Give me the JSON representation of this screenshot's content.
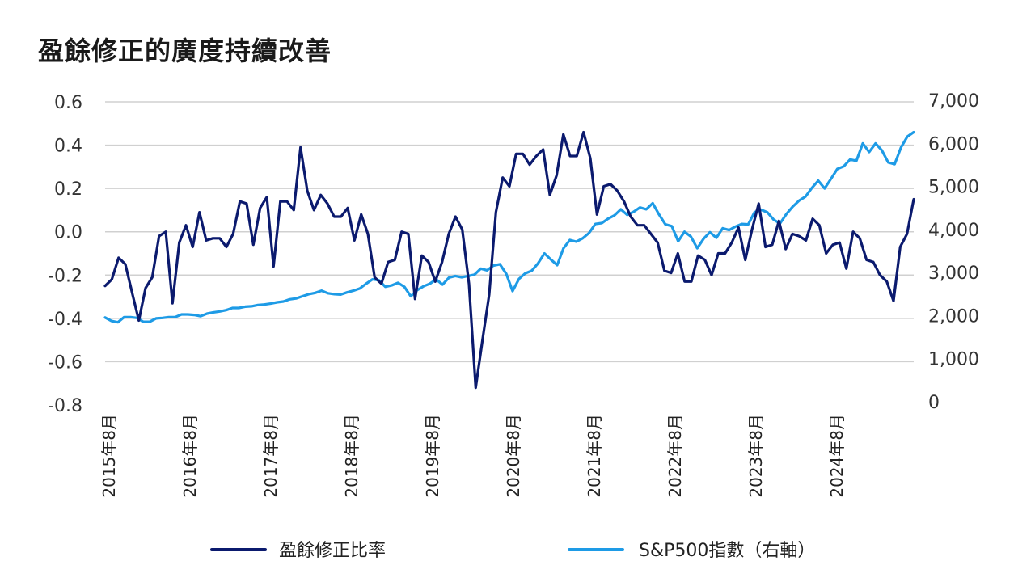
{
  "page_title": "盈餘修正的廣度持續改善",
  "colors": {
    "series1": "#0b1a6e",
    "series2": "#1e9be6",
    "grid": "#d0d0d0"
  },
  "chart_data": {
    "type": "line",
    "title": "盈餘修正的廣度持續改善",
    "y_left": {
      "ylim": [
        -0.8,
        0.6
      ],
      "ticks": [
        "0.6",
        "0.4",
        "0.2",
        "0.0",
        "-0.2",
        "-0.4",
        "-0.6",
        "-0.8"
      ]
    },
    "y_right": {
      "ylim": [
        0,
        7000
      ],
      "ticks": [
        "7,000",
        "6,000",
        "5,000",
        "4,000",
        "3,000",
        "2,000",
        "1,000",
        "0"
      ]
    },
    "x_ticks": [
      "2015年8月",
      "2016年8月",
      "2017年8月",
      "2018年8月",
      "2019年8月",
      "2020年8月",
      "2021年8月",
      "2022年8月",
      "2023年8月",
      "2024年8月"
    ],
    "grid": true,
    "legend_position": "bottom",
    "series": [
      {
        "name": "盈餘修正比率",
        "axis": "left",
        "values": [
          -0.25,
          -0.22,
          -0.12,
          -0.15,
          -0.28,
          -0.41,
          -0.26,
          -0.21,
          -0.02,
          0.0,
          -0.33,
          -0.05,
          0.03,
          -0.07,
          0.09,
          -0.04,
          -0.03,
          -0.03,
          -0.07,
          -0.01,
          0.14,
          0.13,
          -0.06,
          0.11,
          0.16,
          -0.16,
          0.14,
          0.14,
          0.1,
          0.39,
          0.19,
          0.1,
          0.17,
          0.13,
          0.07,
          0.07,
          0.11,
          -0.04,
          0.08,
          -0.01,
          -0.21,
          -0.24,
          -0.14,
          -0.13,
          0.0,
          -0.01,
          -0.31,
          -0.11,
          -0.14,
          -0.23,
          -0.14,
          -0.01,
          0.07,
          0.01,
          -0.24,
          -0.72,
          -0.5,
          -0.29,
          0.09,
          0.25,
          0.21,
          0.36,
          0.36,
          0.31,
          0.35,
          0.38,
          0.17,
          0.26,
          0.45,
          0.35,
          0.35,
          0.46,
          0.34,
          0.08,
          0.21,
          0.22,
          0.19,
          0.14,
          0.07,
          0.03,
          0.03,
          -0.01,
          -0.05,
          -0.18,
          -0.19,
          -0.1,
          -0.23,
          -0.23,
          -0.11,
          -0.13,
          -0.2,
          -0.1,
          -0.1,
          -0.05,
          0.02,
          -0.13,
          0.01,
          0.13,
          -0.07,
          -0.06,
          0.05,
          -0.08,
          -0.01,
          -0.02,
          -0.04,
          0.06,
          0.03,
          -0.1,
          -0.06,
          -0.05,
          -0.17,
          0.0,
          -0.03,
          -0.13,
          -0.14,
          -0.2,
          -0.23,
          -0.32,
          -0.07,
          -0.01,
          0.15
        ]
      },
      {
        "name": "S&P500指數（右軸）",
        "axis": "right",
        "values": [
          2020,
          1940,
          1910,
          2030,
          2030,
          2010,
          1920,
          1920,
          2000,
          2010,
          2030,
          2030,
          2090,
          2090,
          2080,
          2050,
          2110,
          2140,
          2160,
          2190,
          2240,
          2240,
          2270,
          2280,
          2310,
          2320,
          2340,
          2370,
          2390,
          2440,
          2460,
          2510,
          2560,
          2590,
          2640,
          2580,
          2560,
          2550,
          2600,
          2640,
          2690,
          2800,
          2900,
          2880,
          2730,
          2760,
          2820,
          2730,
          2510,
          2650,
          2740,
          2800,
          2900,
          2780,
          2940,
          2980,
          2950,
          2980,
          3010,
          3150,
          3110,
          3220,
          3250,
          3030,
          2630,
          2910,
          3040,
          3100,
          3270,
          3500,
          3360,
          3230,
          3620,
          3810,
          3770,
          3850,
          3970,
          4180,
          4200,
          4300,
          4380,
          4520,
          4390,
          4460,
          4560,
          4520,
          4660,
          4400,
          4170,
          4130,
          3780,
          4000,
          3890,
          3620,
          3840,
          3990,
          3860,
          4080,
          4040,
          4120,
          4180,
          4170,
          4450,
          4510,
          4450,
          4280,
          4190,
          4410,
          4580,
          4720,
          4810,
          5010,
          5180,
          5000,
          5220,
          5450,
          5510,
          5670,
          5640,
          6040,
          5840,
          6040,
          5880,
          5600,
          5560,
          5950,
          6200,
          6300
        ]
      }
    ]
  }
}
